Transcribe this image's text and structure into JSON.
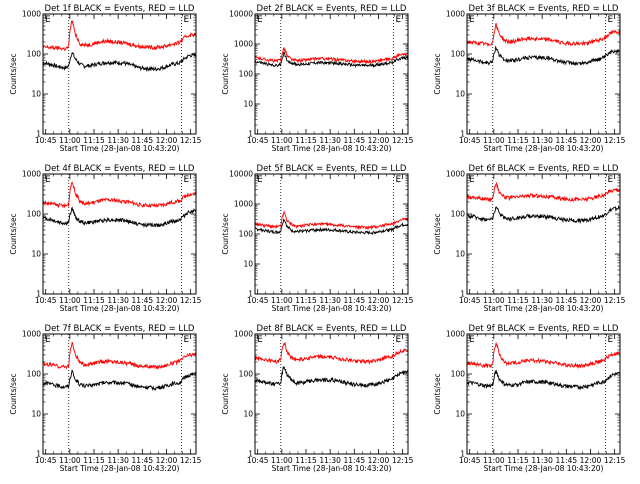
{
  "figure": {
    "background": "#ffffff",
    "event_color": "#000000",
    "lld_color": "#ff0000"
  },
  "chart_data": [
    {
      "type": "line",
      "title": "Det 1f BLACK = Events, RED = LLD",
      "ylabel": "Counts/sec",
      "xlabel": "Start Time (28-Jan-08 10:43:20)",
      "x_ticks": [
        "10:45",
        "11:00",
        "11:15",
        "11:30",
        "11:45",
        "12:00",
        "12:15"
      ],
      "y_ticks": [
        "1",
        "10",
        "100",
        "1000"
      ],
      "corner_labels": [
        "E",
        "E"
      ],
      "yscale": "log",
      "ylim": [
        1,
        1000
      ],
      "xlim_min": [
        0,
        95
      ],
      "dotted_vlines_min": [
        16,
        86
      ],
      "x": [
        0,
        5,
        10,
        14,
        16,
        18,
        20,
        23,
        26,
        30,
        35,
        40,
        50,
        60,
        70,
        75,
        80,
        85,
        88,
        91,
        95
      ],
      "series": [
        {
          "name": "BLACK = Events",
          "color": "#000000",
          "values": [
            60,
            55,
            48,
            45,
            50,
            110,
            75,
            55,
            50,
            52,
            58,
            62,
            60,
            45,
            42,
            46,
            55,
            60,
            78,
            92,
            95
          ]
        },
        {
          "name": "RED = LLD",
          "color": "#ff0000",
          "values": [
            150,
            145,
            140,
            135,
            150,
            700,
            300,
            180,
            165,
            175,
            200,
            210,
            190,
            155,
            145,
            155,
            175,
            195,
            260,
            300,
            310
          ]
        }
      ]
    },
    {
      "type": "line",
      "title": "Det 2f BLACK = Events, RED = LLD",
      "ylabel": "Counts/sec",
      "xlabel": "Start Time (28-Jan-08 10:43:20)",
      "x_ticks": [
        "10:45",
        "11:00",
        "11:15",
        "11:30",
        "11:45",
        "12:00",
        "12:15"
      ],
      "y_ticks": [
        "1",
        "10",
        "100",
        "1000",
        "10000"
      ],
      "corner_labels": [
        "E",
        "E"
      ],
      "yscale": "log",
      "ylim": [
        1,
        10000
      ],
      "xlim_min": [
        0,
        95
      ],
      "dotted_vlines_min": [
        16,
        86
      ],
      "x": [
        0,
        5,
        10,
        14,
        16,
        18,
        20,
        23,
        26,
        30,
        35,
        40,
        50,
        60,
        70,
        75,
        80,
        85,
        88,
        91,
        95
      ],
      "series": [
        {
          "name": "BLACK = Events",
          "color": "#000000",
          "values": [
            260,
            230,
            200,
            190,
            210,
            500,
            280,
            230,
            210,
            210,
            230,
            240,
            230,
            200,
            190,
            200,
            220,
            240,
            300,
            340,
            360
          ]
        },
        {
          "name": "RED = LLD",
          "color": "#ff0000",
          "values": [
            350,
            320,
            280,
            270,
            300,
            750,
            400,
            300,
            280,
            290,
            310,
            330,
            310,
            270,
            260,
            270,
            300,
            320,
            400,
            440,
            460
          ]
        }
      ]
    },
    {
      "type": "line",
      "title": "Det 3f BLACK = Events, RED = LLD",
      "ylabel": "Counts/sec",
      "xlabel": "Start Time (28-Jan-08 10:43:20)",
      "x_ticks": [
        "10:45",
        "11:00",
        "11:15",
        "11:30",
        "11:45",
        "12:00",
        "12:15"
      ],
      "y_ticks": [
        "1",
        "10",
        "100",
        "1000"
      ],
      "corner_labels": [
        "E",
        "E"
      ],
      "yscale": "log",
      "ylim": [
        1,
        1000
      ],
      "xlim_min": [
        0,
        95
      ],
      "dotted_vlines_min": [
        16,
        86
      ],
      "x": [
        0,
        5,
        10,
        14,
        16,
        18,
        20,
        23,
        26,
        30,
        35,
        40,
        50,
        60,
        70,
        75,
        80,
        85,
        88,
        91,
        95
      ],
      "series": [
        {
          "name": "BLACK = Events",
          "color": "#000000",
          "values": [
            75,
            70,
            62,
            60,
            65,
            150,
            95,
            72,
            66,
            70,
            78,
            82,
            80,
            62,
            58,
            62,
            72,
            80,
            100,
            120,
            125
          ]
        },
        {
          "name": "RED = LLD",
          "color": "#ff0000",
          "values": [
            200,
            190,
            180,
            175,
            190,
            550,
            320,
            220,
            200,
            210,
            240,
            250,
            230,
            190,
            180,
            190,
            215,
            240,
            310,
            350,
            360
          ]
        }
      ]
    },
    {
      "type": "line",
      "title": "Det 4f BLACK = Events, RED = LLD",
      "ylabel": "Counts/sec",
      "xlabel": "Start Time (28-Jan-08 10:43:20)",
      "x_ticks": [
        "10:45",
        "11:00",
        "11:15",
        "11:30",
        "11:45",
        "12:00",
        "12:15"
      ],
      "y_ticks": [
        "1",
        "10",
        "100",
        "1000"
      ],
      "corner_labels": [
        "E",
        "E"
      ],
      "yscale": "log",
      "ylim": [
        1,
        1000
      ],
      "xlim_min": [
        0,
        95
      ],
      "dotted_vlines_min": [
        16,
        86
      ],
      "x": [
        0,
        5,
        10,
        14,
        16,
        18,
        20,
        23,
        26,
        30,
        35,
        40,
        50,
        60,
        70,
        75,
        80,
        85,
        88,
        91,
        95
      ],
      "series": [
        {
          "name": "BLACK = Events",
          "color": "#000000",
          "values": [
            80,
            72,
            62,
            58,
            62,
            140,
            85,
            65,
            60,
            62,
            68,
            72,
            70,
            55,
            52,
            56,
            65,
            72,
            95,
            115,
            120
          ]
        },
        {
          "name": "RED = LLD",
          "color": "#ff0000",
          "values": [
            190,
            180,
            165,
            160,
            175,
            650,
            330,
            200,
            180,
            190,
            215,
            225,
            210,
            170,
            160,
            170,
            195,
            215,
            280,
            310,
            320
          ]
        }
      ]
    },
    {
      "type": "line",
      "title": "Det 5f BLACK = Events, RED = LLD",
      "ylabel": "Counts/sec",
      "xlabel": "Start Time (28-Jan-08 10:43:20)",
      "x_ticks": [
        "10:45",
        "11:00",
        "11:15",
        "11:30",
        "11:45",
        "12:00",
        "12:15"
      ],
      "y_ticks": [
        "1",
        "10",
        "100",
        "1000",
        "10000"
      ],
      "corner_labels": [
        "E",
        "E"
      ],
      "yscale": "log",
      "ylim": [
        1,
        10000
      ],
      "xlim_min": [
        0,
        95
      ],
      "dotted_vlines_min": [
        16,
        86
      ],
      "x": [
        0,
        5,
        10,
        14,
        16,
        18,
        20,
        23,
        26,
        30,
        35,
        40,
        50,
        60,
        70,
        75,
        80,
        85,
        88,
        91,
        95
      ],
      "series": [
        {
          "name": "BLACK = Events",
          "color": "#000000",
          "values": [
            150,
            135,
            120,
            115,
            125,
            320,
            170,
            130,
            120,
            125,
            135,
            140,
            135,
            115,
            110,
            115,
            130,
            140,
            175,
            200,
            210
          ]
        },
        {
          "name": "RED = LLD",
          "color": "#ff0000",
          "values": [
            220,
            200,
            180,
            170,
            190,
            520,
            270,
            200,
            180,
            190,
            205,
            215,
            200,
            175,
            165,
            175,
            195,
            210,
            265,
            300,
            310
          ]
        }
      ]
    },
    {
      "type": "line",
      "title": "Det 6f BLACK = Events, RED = LLD",
      "ylabel": "Counts/sec",
      "xlabel": "Start Time (28-Jan-08 10:43:20)",
      "x_ticks": [
        "10:45",
        "11:00",
        "11:15",
        "11:30",
        "11:45",
        "12:00",
        "12:15"
      ],
      "y_ticks": [
        "1",
        "10",
        "100",
        "1000"
      ],
      "corner_labels": [
        "E",
        "E"
      ],
      "yscale": "log",
      "ylim": [
        1,
        1000
      ],
      "xlim_min": [
        0,
        95
      ],
      "dotted_vlines_min": [
        16,
        86
      ],
      "x": [
        0,
        5,
        10,
        14,
        16,
        18,
        20,
        23,
        26,
        30,
        35,
        40,
        50,
        60,
        70,
        75,
        80,
        85,
        88,
        91,
        95
      ],
      "series": [
        {
          "name": "BLACK = Events",
          "color": "#000000",
          "values": [
            90,
            85,
            75,
            72,
            78,
            150,
            105,
            82,
            76,
            78,
            85,
            90,
            86,
            72,
            68,
            72,
            82,
            90,
            115,
            135,
            140
          ]
        },
        {
          "name": "RED = LLD",
          "color": "#ff0000",
          "values": [
            270,
            260,
            240,
            230,
            250,
            600,
            360,
            270,
            250,
            260,
            280,
            290,
            275,
            240,
            230,
            240,
            265,
            290,
            360,
            400,
            410
          ]
        }
      ]
    },
    {
      "type": "line",
      "title": "Det 7f BLACK = Events, RED = LLD",
      "ylabel": "Counts/sec",
      "xlabel": "Start Time (28-Jan-08 10:43:20)",
      "x_ticks": [
        "10:45",
        "11:00",
        "11:15",
        "11:30",
        "11:45",
        "12:00",
        "12:15"
      ],
      "y_ticks": [
        "1",
        "10",
        "100",
        "1000"
      ],
      "corner_labels": [
        "E",
        "E"
      ],
      "yscale": "log",
      "ylim": [
        1,
        1000
      ],
      "xlim_min": [
        0,
        95
      ],
      "dotted_vlines_min": [
        16,
        86
      ],
      "x": [
        0,
        5,
        10,
        14,
        16,
        18,
        20,
        23,
        26,
        30,
        35,
        40,
        50,
        60,
        70,
        75,
        80,
        85,
        88,
        91,
        95
      ],
      "series": [
        {
          "name": "BLACK = Events",
          "color": "#000000",
          "values": [
            60,
            56,
            50,
            48,
            52,
            115,
            72,
            55,
            50,
            52,
            58,
            62,
            60,
            48,
            45,
            48,
            56,
            62,
            80,
            95,
            98
          ]
        },
        {
          "name": "RED = LLD",
          "color": "#ff0000",
          "values": [
            180,
            170,
            155,
            150,
            165,
            600,
            300,
            185,
            170,
            180,
            200,
            210,
            195,
            160,
            150,
            160,
            185,
            205,
            270,
            300,
            310
          ]
        }
      ]
    },
    {
      "type": "line",
      "title": "Det 8f BLACK = Events, RED = LLD",
      "ylabel": "Counts/sec",
      "xlabel": "Start Time (28-Jan-08 10:43:20)",
      "x_ticks": [
        "10:45",
        "11:00",
        "11:15",
        "11:30",
        "11:45",
        "12:00",
        "12:15"
      ],
      "y_ticks": [
        "1",
        "10",
        "100",
        "1000"
      ],
      "corner_labels": [
        "E",
        "E"
      ],
      "yscale": "log",
      "ylim": [
        1,
        1000
      ],
      "xlim_min": [
        0,
        95
      ],
      "dotted_vlines_min": [
        16,
        86
      ],
      "x": [
        0,
        5,
        10,
        14,
        16,
        18,
        20,
        23,
        26,
        30,
        35,
        40,
        50,
        60,
        70,
        75,
        80,
        85,
        88,
        91,
        95
      ],
      "series": [
        {
          "name": "BLACK = Events",
          "color": "#000000",
          "values": [
            70,
            65,
            58,
            55,
            60,
            160,
            90,
            66,
            60,
            62,
            68,
            72,
            70,
            56,
            52,
            56,
            65,
            72,
            92,
            110,
            115
          ]
        },
        {
          "name": "RED = LLD",
          "color": "#ff0000",
          "values": [
            250,
            235,
            215,
            205,
            225,
            650,
            350,
            250,
            230,
            240,
            260,
            270,
            255,
            215,
            205,
            215,
            245,
            270,
            340,
            380,
            390
          ]
        }
      ]
    },
    {
      "type": "line",
      "title": "Det 9f BLACK = Events, RED = LLD",
      "ylabel": "Counts/sec",
      "xlabel": "Start Time (28-Jan-08 10:43:20)",
      "x_ticks": [
        "10:45",
        "11:00",
        "11:15",
        "11:30",
        "11:45",
        "12:00",
        "12:15"
      ],
      "y_ticks": [
        "1",
        "10",
        "100",
        "1000"
      ],
      "corner_labels": [
        "E",
        "E"
      ],
      "yscale": "log",
      "ylim": [
        1,
        1000
      ],
      "xlim_min": [
        0,
        95
      ],
      "dotted_vlines_min": [
        16,
        86
      ],
      "x": [
        0,
        5,
        10,
        14,
        16,
        18,
        20,
        23,
        26,
        30,
        35,
        40,
        50,
        60,
        70,
        75,
        80,
        85,
        88,
        91,
        95
      ],
      "series": [
        {
          "name": "BLACK = Events",
          "color": "#000000",
          "values": [
            62,
            58,
            52,
            50,
            54,
            120,
            75,
            57,
            52,
            54,
            60,
            64,
            62,
            50,
            47,
            50,
            58,
            64,
            82,
            98,
            102
          ]
        },
        {
          "name": "RED = LLD",
          "color": "#ff0000",
          "values": [
            190,
            180,
            165,
            160,
            175,
            620,
            310,
            195,
            180,
            190,
            210,
            220,
            205,
            170,
            160,
            170,
            195,
            215,
            280,
            315,
            325
          ]
        }
      ]
    }
  ]
}
